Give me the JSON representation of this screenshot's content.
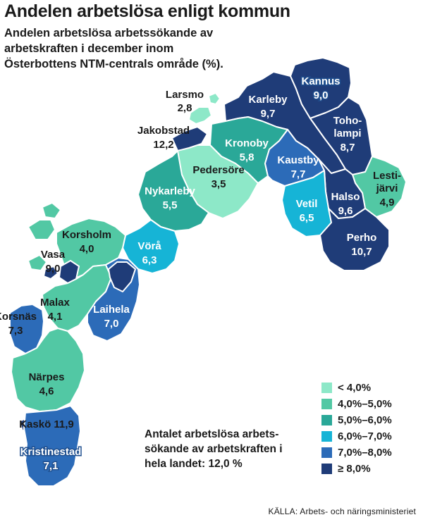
{
  "title": "Andelen arbetslösa enligt kommun",
  "subtitle": "Andelen arbetslösa arbetssökande av arbetskraften i december inom Österbottens NTM-centrals område (%).",
  "colors": {
    "lt4": "#8de8c8",
    "4to5": "#52c8a4",
    "5to6": "#2aa898",
    "6to7": "#16b4d6",
    "7to8": "#2c6bb8",
    "ge8": "#1f3c78"
  },
  "legend": [
    {
      "label": "< 4,0%",
      "color_key": "lt4"
    },
    {
      "label": "4,0%–5,0%",
      "color_key": "4to5"
    },
    {
      "label": "5,0%–6,0%",
      "color_key": "5to6"
    },
    {
      "label": "6,0%–7,0%",
      "color_key": "6to7"
    },
    {
      "label": "7,0%–8,0%",
      "color_key": "7to8"
    },
    {
      "label": "≥ 8,0%",
      "color_key": "ge8"
    }
  ],
  "municipalities": [
    {
      "name": "Larsmo",
      "value": "2,8",
      "class": "lt4"
    },
    {
      "name": "Jakobstad",
      "value": "12,2",
      "class": "ge8"
    },
    {
      "name": "Karleby",
      "value": "9,7",
      "class": "ge8"
    },
    {
      "name": "Kannus",
      "value": "9,0",
      "class": "ge8"
    },
    {
      "name": "Toholampi",
      "name_line1": "Toho-",
      "name_line2": "lampi",
      "value": "8,7",
      "class": "ge8"
    },
    {
      "name": "Kronoby",
      "value": "5,8",
      "class": "5to6"
    },
    {
      "name": "Kaustby",
      "value": "7,7",
      "class": "7to8"
    },
    {
      "name": "Lestijärvi",
      "name_line1": "Lesti-",
      "name_line2": "järvi",
      "value": "4,9",
      "class": "4to5"
    },
    {
      "name": "Pedersöre",
      "value": "3,5",
      "class": "lt4"
    },
    {
      "name": "Nykarleby",
      "value": "5,5",
      "class": "5to6"
    },
    {
      "name": "Vetil",
      "value": "6,5",
      "class": "6to7"
    },
    {
      "name": "Halso",
      "value": "9,6",
      "class": "ge8"
    },
    {
      "name": "Perho",
      "value": "10,7",
      "class": "ge8"
    },
    {
      "name": "Korsholm",
      "value": "4,0",
      "class": "4to5"
    },
    {
      "name": "Vörå",
      "value": "6,3",
      "class": "6to7"
    },
    {
      "name": "Vasa",
      "value": "9,0",
      "class": "ge8"
    },
    {
      "name": "Malax",
      "value": "4,1",
      "class": "4to5"
    },
    {
      "name": "Laihela",
      "value": "7,0",
      "class": "7to8"
    },
    {
      "name": "Korsnäs",
      "value": "7,3",
      "class": "7to8"
    },
    {
      "name": "Närpes",
      "value": "4,6",
      "class": "4to5"
    },
    {
      "name": "Kaskö",
      "value": "11,9",
      "class": "ge8"
    },
    {
      "name": "Kristinestad",
      "value": "7,1",
      "class": "7to8"
    }
  ],
  "national_note": {
    "text": "Antalet arbetslösa arbets-sökande av arbetskraften i hela landet:",
    "value": "12,0 %"
  },
  "source": "KÄLLA: Arbets- och näringsministeriet"
}
